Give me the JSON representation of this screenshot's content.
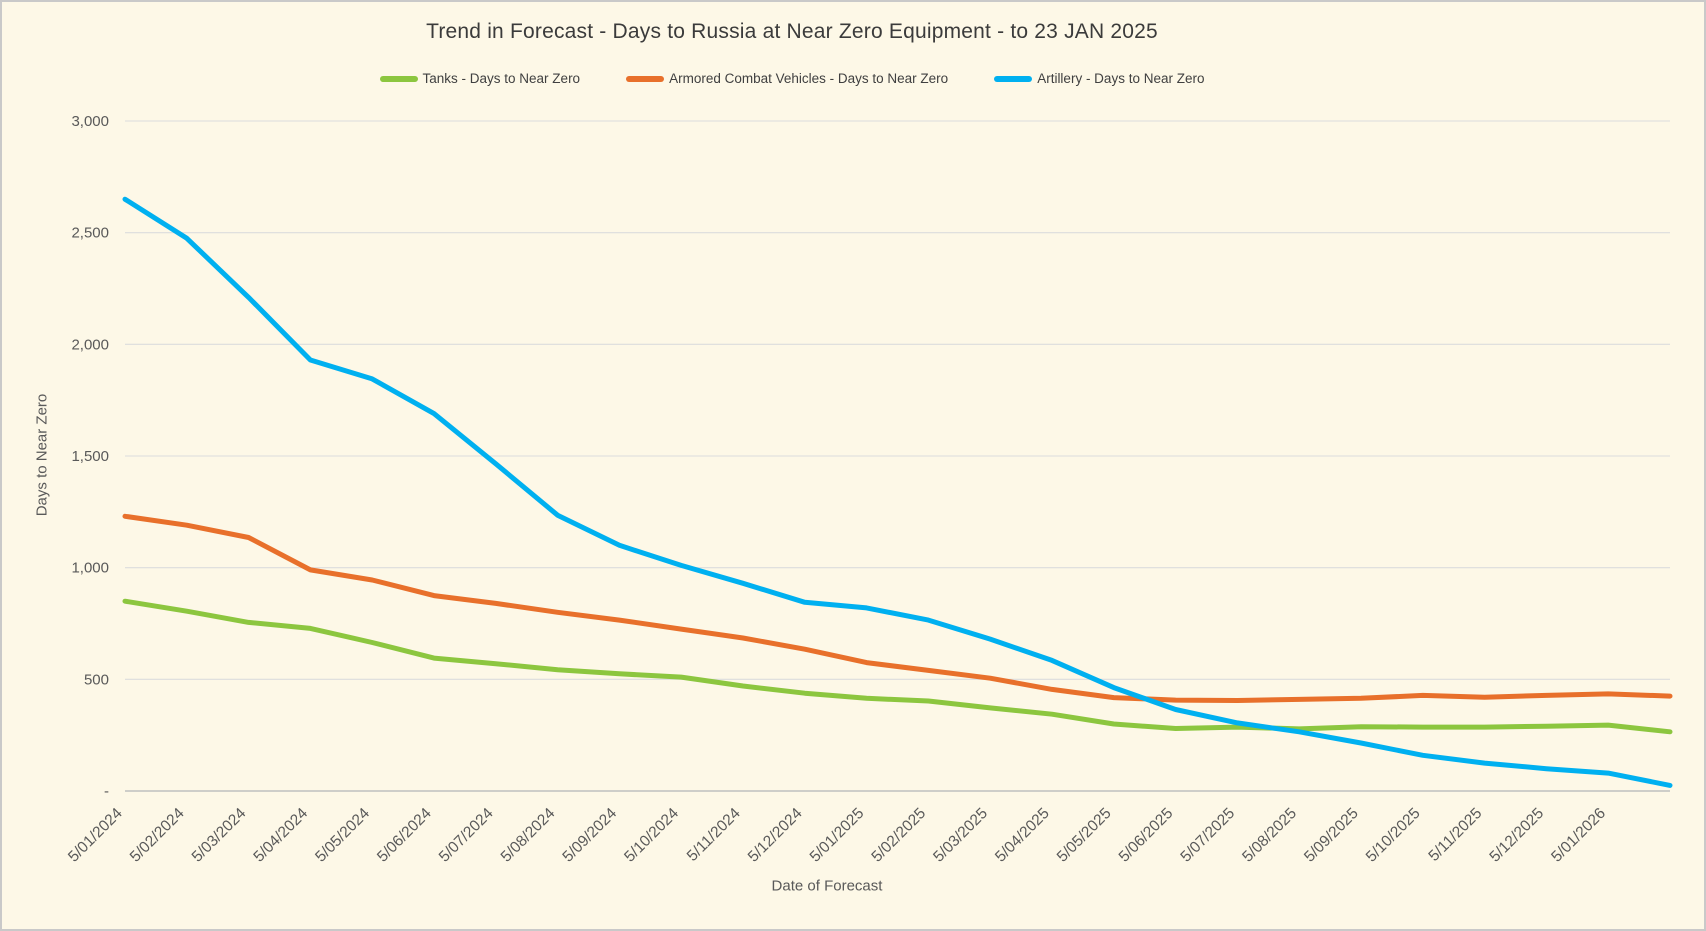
{
  "window": {
    "background_color": "#FDF8E7",
    "border_color": "#C9C9C9"
  },
  "chart_data": {
    "type": "line",
    "title": "Trend in Forecast - Days to Russia at Near Zero Equipment - to 23 JAN 2025",
    "title_color": "#3B3B3B",
    "legend_position": "top",
    "grid": true,
    "plot_background": "#FDF8E7",
    "gridline_color": "#DCDCDC",
    "axis_line_color": "#BFBFBF",
    "tick_text_color": "#595959",
    "x_axis": {
      "label": "Date of Forecast",
      "tick_labels": [
        "5/01/2024",
        "5/02/2024",
        "5/03/2024",
        "5/04/2024",
        "5/05/2024",
        "5/06/2024",
        "5/07/2024",
        "5/08/2024",
        "5/09/2024",
        "5/10/2024",
        "5/11/2024",
        "5/12/2024",
        "5/01/2025",
        "5/02/2025",
        "5/03/2025",
        "5/04/2025",
        "5/05/2025",
        "5/06/2025",
        "5/07/2025",
        "5/08/2025",
        "5/09/2025",
        "5/10/2025",
        "5/11/2025",
        "5/12/2025",
        "5/01/2026"
      ],
      "tick_label_rotation_deg": -45,
      "points_extend_past_last_label": 1
    },
    "y_axis": {
      "label": "Days to Near Zero",
      "min": 0,
      "max": 3000,
      "tick_values": [
        3000,
        2500,
        2000,
        1500,
        1000,
        500,
        0
      ],
      "tick_labels": [
        "3,000",
        "2,500",
        "2,000",
        "1,500",
        "1,000",
        "500",
        "-"
      ]
    },
    "series": [
      {
        "name": "Tanks - Days to Near Zero",
        "color": "#8CC63F",
        "values": [
          850,
          805,
          755,
          728,
          665,
          595,
          570,
          543,
          525,
          510,
          470,
          438,
          415,
          403,
          372,
          344,
          300,
          280,
          286,
          278,
          288,
          286,
          286,
          290,
          295,
          265
        ]
      },
      {
        "name": "Armored Combat Vehicles - Days to Near Zero",
        "color": "#E8702B",
        "values": [
          1230,
          1190,
          1135,
          990,
          945,
          875,
          840,
          800,
          765,
          725,
          685,
          635,
          575,
          540,
          505,
          455,
          418,
          407,
          405,
          410,
          415,
          428,
          420,
          428,
          435,
          425
        ]
      },
      {
        "name": "Artillery - Days to Near Zero",
        "color": "#00B0F0",
        "values": [
          2650,
          2475,
          2210,
          1930,
          1845,
          1690,
          1465,
          1235,
          1100,
          1010,
          930,
          845,
          820,
          765,
          680,
          585,
          463,
          365,
          305,
          265,
          215,
          160,
          125,
          100,
          80,
          25
        ]
      }
    ]
  }
}
